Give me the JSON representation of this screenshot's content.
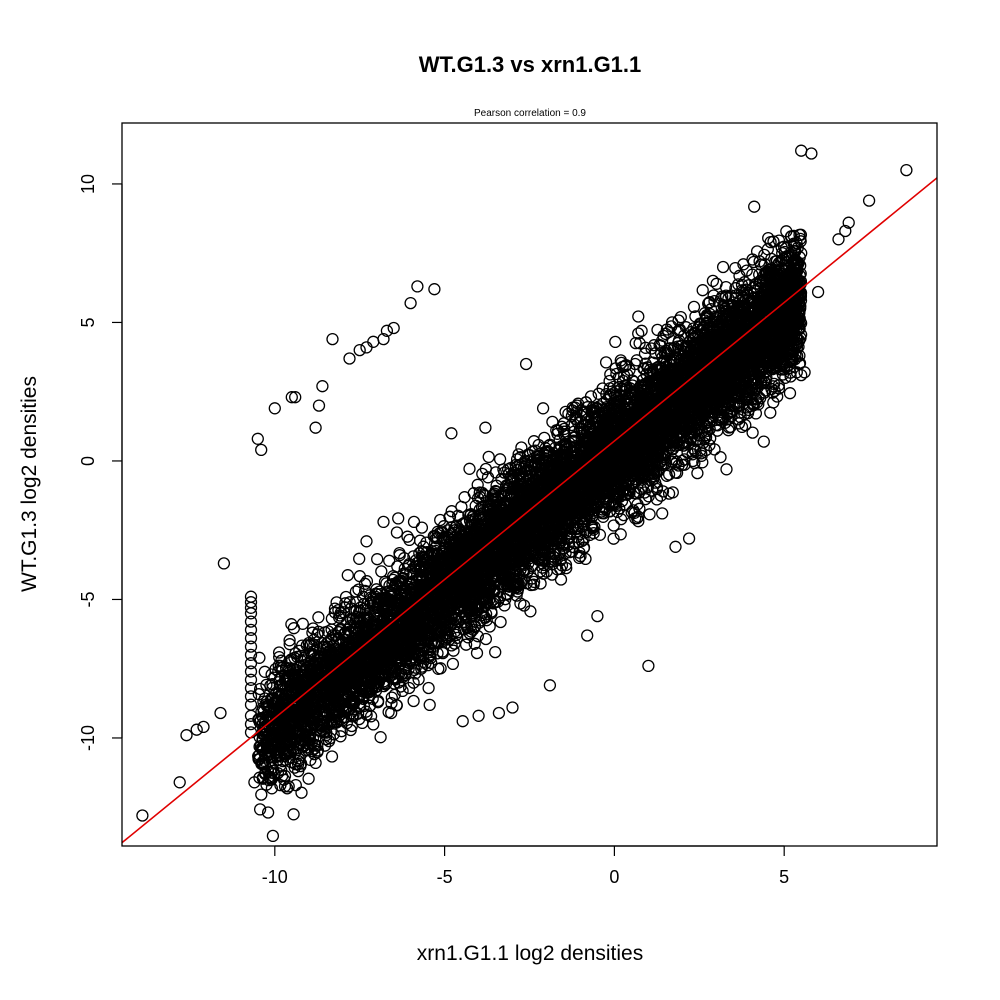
{
  "chart_data": {
    "type": "scatter",
    "title": "WT.G1.3 vs xrn1.G1.1",
    "subtitle": "Pearson correlation =  0.9",
    "xlabel": "xrn1.G1.1 log2 densities",
    "ylabel": "WT.G1.3 log2 densities",
    "xlim": [
      -14.5,
      9.5
    ],
    "ylim": [
      -13.9,
      12.2
    ],
    "x_ticks": [
      -10,
      -5,
      0,
      5
    ],
    "y_ticks": [
      -10,
      -5,
      0,
      5,
      10
    ],
    "x_tick_labels": [
      "-10",
      "-5",
      "0",
      "5"
    ],
    "y_tick_labels": [
      "-10",
      "-5",
      "0",
      "5",
      "10"
    ],
    "grid": false,
    "marker": "open-circle",
    "point_color": "#000000",
    "fit_line": {
      "color": "#e00000",
      "intercept": 0.72,
      "slope": 1.0
    },
    "main_cloud": {
      "description_free_params": true,
      "x_range": [
        -10.5,
        5.5
      ],
      "center_line": {
        "intercept": 0.35,
        "slope": 1.0
      },
      "spread_sd": 1.1,
      "n": 9000
    },
    "points": [
      {
        "x": -13.9,
        "y": -12.8
      },
      {
        "x": -12.8,
        "y": -11.6
      },
      {
        "x": -12.6,
        "y": -9.9
      },
      {
        "x": -12.3,
        "y": -9.7
      },
      {
        "x": -12.1,
        "y": -9.6
      },
      {
        "x": -11.6,
        "y": -9.1
      },
      {
        "x": -11.5,
        "y": -3.7
      },
      {
        "x": -10.6,
        "y": -11.6
      },
      {
        "x": -10.2,
        "y": -10.6
      },
      {
        "x": -10.1,
        "y": -10.5
      },
      {
        "x": -9.5,
        "y": -10.4
      },
      {
        "x": -9.2,
        "y": -10.1
      },
      {
        "x": -9.0,
        "y": -10.2
      },
      {
        "x": -8.8,
        "y": -10.9
      },
      {
        "x": -10.5,
        "y": 0.8
      },
      {
        "x": -10.4,
        "y": 0.4
      },
      {
        "x": -10.0,
        "y": 1.9
      },
      {
        "x": -9.5,
        "y": 2.3
      },
      {
        "x": -9.4,
        "y": 2.3
      },
      {
        "x": -8.8,
        "y": 1.2
      },
      {
        "x": -8.7,
        "y": 2.0
      },
      {
        "x": -8.6,
        "y": 2.7
      },
      {
        "x": -8.3,
        "y": 4.4
      },
      {
        "x": -7.8,
        "y": 3.7
      },
      {
        "x": -7.5,
        "y": 4.0
      },
      {
        "x": -7.3,
        "y": 4.1
      },
      {
        "x": -7.1,
        "y": 4.3
      },
      {
        "x": -6.8,
        "y": 4.4
      },
      {
        "x": -6.7,
        "y": 4.7
      },
      {
        "x": -6.5,
        "y": 4.8
      },
      {
        "x": -6.0,
        "y": 5.7
      },
      {
        "x": -5.8,
        "y": 6.3
      },
      {
        "x": -5.3,
        "y": 6.2
      },
      {
        "x": -4.8,
        "y": 1.0
      },
      {
        "x": -3.8,
        "y": 1.2
      },
      {
        "x": -2.6,
        "y": 3.5
      },
      {
        "x": -2.1,
        "y": 1.9
      },
      {
        "x": -5.9,
        "y": -2.2
      },
      {
        "x": -6.8,
        "y": -2.2
      },
      {
        "x": -7.3,
        "y": -2.9
      },
      {
        "x": 1.0,
        "y": -7.4
      },
      {
        "x": -0.8,
        "y": -6.3
      },
      {
        "x": -0.5,
        "y": -5.6
      },
      {
        "x": -1.9,
        "y": -8.1
      },
      {
        "x": -3.0,
        "y": -8.9
      },
      {
        "x": -3.4,
        "y": -9.1
      },
      {
        "x": -4.0,
        "y": -9.2
      },
      {
        "x": 1.8,
        "y": -3.1
      },
      {
        "x": 2.2,
        "y": -2.8
      },
      {
        "x": 3.3,
        "y": -0.3
      },
      {
        "x": 4.4,
        "y": 0.7
      },
      {
        "x": 5.0,
        "y": 3.3
      },
      {
        "x": 5.5,
        "y": 3.1
      },
      {
        "x": 5.6,
        "y": 3.2
      },
      {
        "x": 6.0,
        "y": 6.1
      },
      {
        "x": 6.6,
        "y": 8.0
      },
      {
        "x": 6.8,
        "y": 8.3
      },
      {
        "x": 6.9,
        "y": 8.6
      },
      {
        "x": 7.5,
        "y": 9.4
      },
      {
        "x": 5.5,
        "y": 11.2
      },
      {
        "x": 5.8,
        "y": 11.1
      },
      {
        "x": 8.6,
        "y": 10.5
      },
      {
        "x": 5.4,
        "y": 7.7
      },
      {
        "x": 5.2,
        "y": 8.1
      },
      {
        "x": 4.6,
        "y": 7.9
      },
      {
        "x": 3.8,
        "y": 7.1
      },
      {
        "x": 3.2,
        "y": 7.0
      },
      {
        "x": 2.9,
        "y": 6.5
      },
      {
        "x": 1.7,
        "y": 5.0
      },
      {
        "x": 0.8,
        "y": 4.7
      },
      {
        "x": 0.7,
        "y": 4.6
      },
      {
        "x": 5.5,
        "y": 7.5
      },
      {
        "x": 4.7,
        "y": 6.9
      },
      {
        "x": 4.9,
        "y": 6.6
      }
    ],
    "left_column_x": -10.7,
    "left_column_y": [
      -9.8,
      -9.5,
      -9.2,
      -8.8,
      -8.5,
      -8.2,
      -7.9,
      -7.6,
      -7.3,
      -7.0,
      -6.7,
      -6.4,
      -6.1,
      -5.8,
      -5.5,
      -5.3,
      -5.1,
      -4.9
    ]
  }
}
